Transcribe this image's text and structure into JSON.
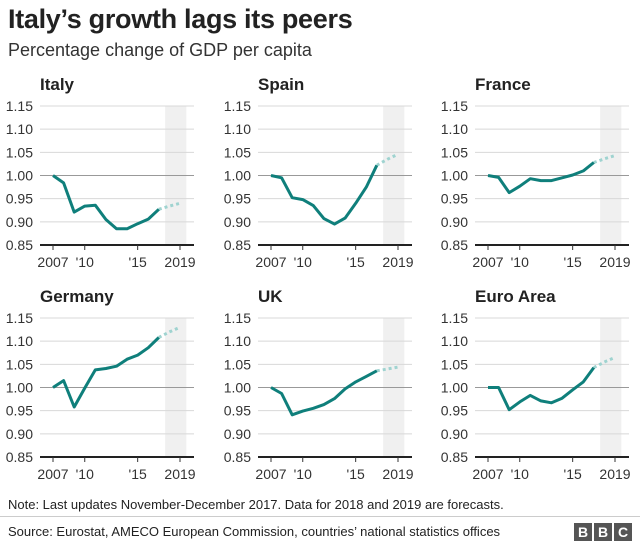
{
  "title": "Italy’s growth lags its peers",
  "subtitle": "Percentage change of GDP per capita",
  "note": "Note: Last updates November-December 2017. Data for 2018 and 2019 are forecasts.",
  "source": "Source: Eurostat, AMECO European Commission, countries’ national statistics offices",
  "logo": "BBC",
  "colors": {
    "line": "#0f7f7b",
    "forecast": "#9fd3d0",
    "forecast_band": "#f0f0f0",
    "grid": "#d8d8d8",
    "baseline": "#222222"
  },
  "chart_data": [
    {
      "type": "line",
      "title": "Italy",
      "x": [
        2007,
        2008,
        2009,
        2010,
        2011,
        2012,
        2013,
        2014,
        2015,
        2016,
        2017,
        2018,
        2019
      ],
      "values": [
        1.0,
        0.984,
        0.921,
        0.934,
        0.936,
        0.905,
        0.885,
        0.885,
        0.896,
        0.906,
        0.927,
        0.934,
        0.94
      ],
      "forecast_from": 2017,
      "ylim": [
        0.85,
        1.15
      ],
      "yticks": [
        "1.15",
        "1.10",
        "1.05",
        "1.00",
        "0.95",
        "0.90",
        "0.85"
      ],
      "xticks": [
        "2007",
        "'10",
        "'15",
        "2019"
      ],
      "grid": true
    },
    {
      "type": "line",
      "title": "Spain",
      "x": [
        2007,
        2008,
        2009,
        2010,
        2011,
        2012,
        2013,
        2014,
        2015,
        2016,
        2017,
        2018,
        2019
      ],
      "values": [
        1.0,
        0.995,
        0.952,
        0.948,
        0.935,
        0.907,
        0.895,
        0.908,
        0.94,
        0.975,
        1.022,
        1.035,
        1.046
      ],
      "forecast_from": 2017,
      "ylim": [
        0.85,
        1.15
      ],
      "yticks": [
        "1.15",
        "1.10",
        "1.05",
        "1.00",
        "0.95",
        "0.90",
        "0.85"
      ],
      "xticks": [
        "2007",
        "'10",
        "'15",
        "2019"
      ],
      "grid": true
    },
    {
      "type": "line",
      "title": "France",
      "x": [
        2007,
        2008,
        2009,
        2010,
        2011,
        2012,
        2013,
        2014,
        2015,
        2016,
        2017,
        2018,
        2019
      ],
      "values": [
        1.0,
        0.996,
        0.963,
        0.977,
        0.993,
        0.989,
        0.989,
        0.995,
        1.001,
        1.01,
        1.028,
        1.036,
        1.043
      ],
      "forecast_from": 2017,
      "ylim": [
        0.85,
        1.15
      ],
      "yticks": [
        "1.15",
        "1.10",
        "1.05",
        "1.00",
        "0.95",
        "0.90",
        "0.85"
      ],
      "xticks": [
        "2007",
        "'10",
        "'15",
        "2019"
      ],
      "grid": true
    },
    {
      "type": "line",
      "title": "Germany",
      "x": [
        2007,
        2008,
        2009,
        2010,
        2011,
        2012,
        2013,
        2014,
        2015,
        2016,
        2017,
        2018,
        2019
      ],
      "values": [
        1.0,
        1.015,
        0.958,
        0.999,
        1.038,
        1.041,
        1.046,
        1.061,
        1.07,
        1.086,
        1.108,
        1.12,
        1.13
      ],
      "forecast_from": 2017,
      "ylim": [
        0.85,
        1.15
      ],
      "yticks": [
        "1.15",
        "1.10",
        "1.05",
        "1.00",
        "0.95",
        "0.90",
        "0.85"
      ],
      "xticks": [
        "2007",
        "'10",
        "'15",
        "2019"
      ],
      "grid": true
    },
    {
      "type": "line",
      "title": "UK",
      "x": [
        2007,
        2008,
        2009,
        2010,
        2011,
        2012,
        2013,
        2014,
        2015,
        2016,
        2017,
        2018,
        2019
      ],
      "values": [
        1.0,
        0.987,
        0.941,
        0.949,
        0.955,
        0.963,
        0.976,
        0.997,
        1.012,
        1.024,
        1.036,
        1.04,
        1.044
      ],
      "forecast_from": 2017,
      "ylim": [
        0.85,
        1.15
      ],
      "yticks": [
        "1.15",
        "1.10",
        "1.05",
        "1.00",
        "0.95",
        "0.90",
        "0.85"
      ],
      "xticks": [
        "2007",
        "'10",
        "'15",
        "2019"
      ],
      "grid": true
    },
    {
      "type": "line",
      "title": "Euro Area",
      "x": [
        2007,
        2008,
        2009,
        2010,
        2011,
        2012,
        2013,
        2014,
        2015,
        2016,
        2017,
        2018,
        2019
      ],
      "values": [
        1.0,
        1.0,
        0.952,
        0.969,
        0.983,
        0.971,
        0.967,
        0.977,
        0.995,
        1.012,
        1.043,
        1.055,
        1.065
      ],
      "forecast_from": 2017,
      "ylim": [
        0.85,
        1.15
      ],
      "yticks": [
        "1.15",
        "1.10",
        "1.05",
        "1.00",
        "0.95",
        "0.90",
        "0.85"
      ],
      "xticks": [
        "2007",
        "'10",
        "'15",
        "2019"
      ],
      "grid": true
    }
  ]
}
